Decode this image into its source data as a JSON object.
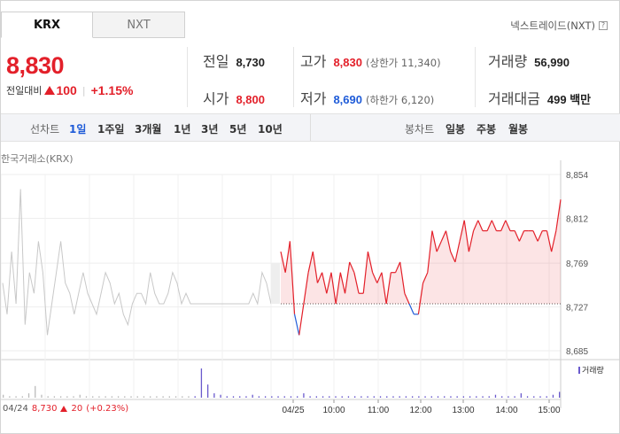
{
  "tabs": [
    {
      "label": "KRX",
      "active": true
    },
    {
      "label": "NXT",
      "active": false
    }
  ],
  "nxt_link": "넥스트레이드(NXT)",
  "price": {
    "current": "8,830",
    "change_label": "전일대비",
    "change": "100",
    "change_pct": "+1.15%"
  },
  "stats": {
    "prev_label": "전일",
    "prev": "8,730",
    "open_label": "시가",
    "open": "8,800",
    "high_label": "고가",
    "high": "8,830",
    "upper_limit": "(상한가 11,340)",
    "low_label": "저가",
    "low": "8,690",
    "lower_limit": "(하한가 6,120)",
    "volume_label": "거래량",
    "volume": "56,990",
    "amount_label": "거래대금",
    "amount": "499 백만"
  },
  "toolbar": {
    "line_chart_label": "선차트",
    "periods": [
      "1일",
      "1주일",
      "3개월",
      "1년",
      "3년",
      "5년",
      "10년"
    ],
    "active_period": "1일",
    "candle_label": "봉차트",
    "candles": [
      "일봉",
      "주봉",
      "월봉"
    ]
  },
  "exchange_label": "한국거래소(KRX)",
  "volume_legend": "거래량",
  "bottom": {
    "date": "04/24",
    "price": "8,730",
    "change": "20",
    "pct": "(+0.23%)"
  },
  "colors": {
    "up": "#e3202a",
    "down": "#1e5bd8",
    "prev_day": "#c8c8c8",
    "volume": "#6a5acd"
  },
  "chart_data": {
    "type": "line",
    "y_ticks": [
      8854,
      8812,
      8769,
      8727,
      8685
    ],
    "ylim": [
      8685,
      8854
    ],
    "x_ticks": [
      "04/25",
      "10:00",
      "11:00",
      "12:00",
      "13:00",
      "14:00",
      "15:00"
    ],
    "reference_value": 8730,
    "series": [
      {
        "values": [
          8750,
          8720,
          8780,
          8730,
          8840,
          8710,
          8760,
          8740,
          8790,
          8760,
          8700,
          8730,
          8760,
          8790,
          8750,
          8740,
          8720,
          8740,
          8760,
          8740,
          8730,
          8720,
          8740,
          8760,
          8750,
          8730,
          8740,
          8720,
          8710,
          8730,
          8740,
          8740,
          8730,
          8760,
          8740,
          8730,
          8730,
          8740,
          8760,
          8750,
          8730,
          8740,
          8730,
          8730,
          8730,
          8730,
          8730,
          8730,
          8730,
          8730,
          8730,
          8730,
          8730,
          8730,
          8730,
          8730,
          8740,
          8730,
          8760,
          8750,
          8730
        ]
      },
      {
        "values": [
          8780,
          8760,
          8790,
          8720,
          8700,
          8730,
          8760,
          8780,
          8750,
          8760,
          8740,
          8760,
          8730,
          8760,
          8740,
          8770,
          8760,
          8740,
          8740,
          8780,
          8760,
          8750,
          8760,
          8730,
          8760,
          8760,
          8770,
          8740,
          8730,
          8720,
          8720,
          8750,
          8760,
          8800,
          8780,
          8790,
          8800,
          8780,
          8770,
          8790,
          8810,
          8780,
          8800,
          8810,
          8800,
          8800,
          8810,
          8800,
          8800,
          8810,
          8800,
          8800,
          8790,
          8800,
          8800,
          8800,
          8790,
          8800,
          8800,
          8780,
          8800,
          8830
        ]
      }
    ],
    "volume": [
      2,
      1,
      1,
      1,
      3,
      8,
      2,
      1,
      1,
      1,
      1,
      1,
      2,
      1,
      1,
      1,
      1,
      1,
      1,
      1,
      1,
      1,
      1,
      1,
      1,
      1,
      1,
      1,
      1,
      1,
      1,
      20,
      9,
      3,
      2,
      1,
      1,
      1,
      1,
      2,
      1,
      1,
      1,
      1,
      1,
      1,
      1,
      3,
      1,
      1,
      1,
      1,
      1,
      1,
      1,
      1,
      1,
      1,
      1,
      1,
      1,
      1,
      1,
      1,
      1,
      1,
      1,
      1,
      1,
      1,
      1,
      1,
      1,
      1,
      1,
      1,
      1,
      2,
      1,
      1,
      1,
      3,
      1,
      1,
      1,
      1,
      2,
      4
    ]
  }
}
